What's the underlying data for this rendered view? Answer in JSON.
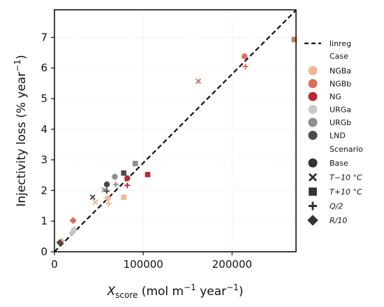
{
  "chart_data": {
    "type": "scatter",
    "xlabel_main": "X",
    "xlabel_sub": "score",
    "xlabel_units": " (mol m",
    "xlabel_sup1": "−1",
    "xlabel_units2": " year",
    "xlabel_sup2": "−1",
    "xlabel_close": ")",
    "ylabel_main": "Injectivity loss (% year",
    "ylabel_sup": "−1",
    "ylabel_close": ")",
    "xlim": [
      0,
      272000
    ],
    "ylim": [
      0,
      7.9
    ],
    "x_ticks": [
      0,
      100000,
      200000
    ],
    "x_tick_labels": [
      "0",
      "100000",
      "200000"
    ],
    "y_ticks": [
      0,
      1,
      2,
      3,
      4,
      5,
      6,
      7
    ],
    "y_tick_labels": [
      "0",
      "1",
      "2",
      "3",
      "4",
      "5",
      "6",
      "7"
    ],
    "grid": true,
    "legend_position": "right",
    "linreg": {
      "label": "linreg",
      "slope": 2.9e-05,
      "intercept": 0
    },
    "legend_case_title": "Case",
    "legend_scenario_title": "Scenario",
    "cases": [
      {
        "name": "NGBa",
        "color": "#f4b594"
      },
      {
        "name": "NGBb",
        "color": "#d6705c"
      },
      {
        "name": "NG",
        "color": "#b82735"
      },
      {
        "name": "URGa",
        "color": "#c8c8c8"
      },
      {
        "name": "URGb",
        "color": "#8e8e8e"
      },
      {
        "name": "LND",
        "color": "#4b4b4b"
      }
    ],
    "scenarios": [
      {
        "name": "Base",
        "marker": "circle"
      },
      {
        "name": "T−10°C",
        "marker": "x"
      },
      {
        "name": "T+10°C",
        "marker": "square"
      },
      {
        "name": "Q/2",
        "marker": "plus"
      },
      {
        "name": "R/10",
        "marker": "diamond"
      }
    ],
    "scenario_labels": [
      {
        "var": "T",
        "rest": "−10 °C"
      },
      {
        "var": "T",
        "rest": "+10 °C"
      },
      {
        "var": "Q",
        "rest": "/2"
      },
      {
        "var": "R",
        "rest": "/10"
      }
    ],
    "points": [
      {
        "case": "NGBa",
        "scenario": "Base",
        "x": 60000,
        "y": 1.75
      },
      {
        "case": "NGBa",
        "scenario": "T−10°C",
        "x": 46000,
        "y": 1.62
      },
      {
        "case": "NGBa",
        "scenario": "T+10°C",
        "x": 78000,
        "y": 1.78
      },
      {
        "case": "NGBa",
        "scenario": "Q/2",
        "x": 61000,
        "y": 1.57
      },
      {
        "case": "NGBa",
        "scenario": "R/10",
        "x": 8000,
        "y": 0.35
      },
      {
        "case": "NGBb",
        "scenario": "Base",
        "x": 214000,
        "y": 6.38
      },
      {
        "case": "NGBb",
        "scenario": "T−10°C",
        "x": 162000,
        "y": 5.57
      },
      {
        "case": "NGBb",
        "scenario": "T+10°C",
        "x": 270000,
        "y": 6.93
      },
      {
        "case": "NGBb",
        "scenario": "Q/2",
        "x": 215000,
        "y": 6.05
      },
      {
        "case": "NGBb",
        "scenario": "R/10",
        "x": 21000,
        "y": 1.02
      },
      {
        "case": "NG",
        "scenario": "Base",
        "x": 82000,
        "y": 2.4
      },
      {
        "case": "NG",
        "scenario": "T+10°C",
        "x": 105000,
        "y": 2.52
      },
      {
        "case": "NG",
        "scenario": "Q/2",
        "x": 82000,
        "y": 2.17
      },
      {
        "case": "URGa",
        "scenario": "Base",
        "x": 22000,
        "y": 0.72
      },
      {
        "case": "URGa",
        "scenario": "R/10",
        "x": 20000,
        "y": 0.62
      },
      {
        "case": "URGb",
        "scenario": "Base",
        "x": 68000,
        "y": 2.45
      },
      {
        "case": "URGb",
        "scenario": "T−10°C",
        "x": 56000,
        "y": 2.02
      },
      {
        "case": "URGb",
        "scenario": "T+10°C",
        "x": 91000,
        "y": 2.88
      },
      {
        "case": "URGb",
        "scenario": "Q/2",
        "x": 69000,
        "y": 2.2
      },
      {
        "case": "LND",
        "scenario": "Base",
        "x": 59000,
        "y": 2.2
      },
      {
        "case": "LND",
        "scenario": "T−10°C",
        "x": 43000,
        "y": 1.78
      },
      {
        "case": "LND",
        "scenario": "T+10°C",
        "x": 78000,
        "y": 2.57
      },
      {
        "case": "LND",
        "scenario": "Q/2",
        "x": 59000,
        "y": 1.98
      },
      {
        "case": "LND",
        "scenario": "R/10",
        "x": 6000,
        "y": 0.3
      }
    ]
  }
}
